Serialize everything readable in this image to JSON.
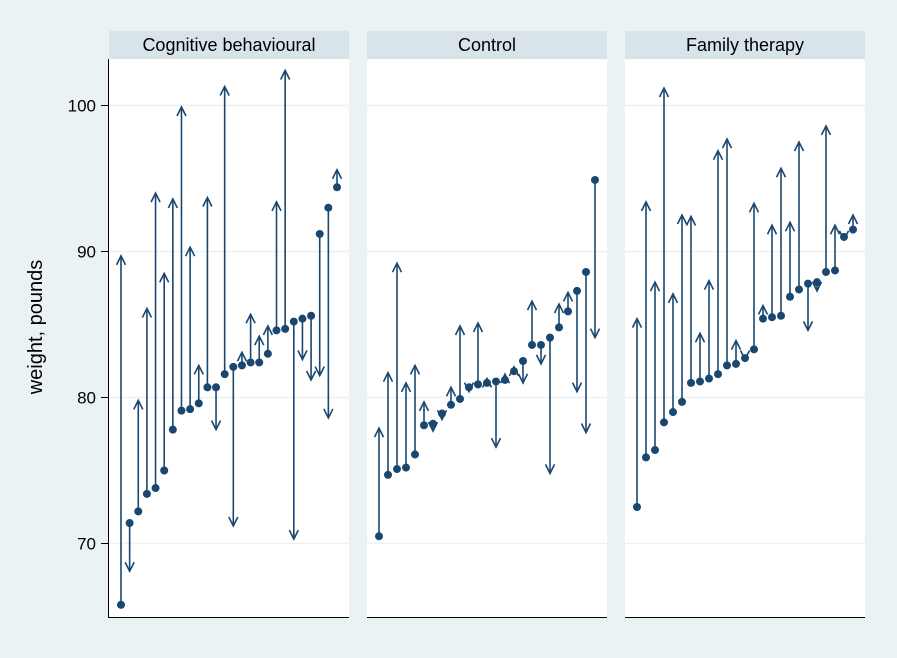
{
  "chart_data": {
    "type": "dropline",
    "ylabel": "weight, pounds",
    "xlabel": "",
    "ylim": [
      65,
      103
    ],
    "yticks": [
      "70",
      "80",
      "90",
      "100"
    ],
    "grid": true,
    "colors": {
      "background": "#eaf2f3",
      "panel": "#ffffff",
      "strip": "#d8e3ea",
      "marker": "#1a476f",
      "grid": "#eaf2f3"
    },
    "panels": [
      {
        "name": "Cognitive behavioural",
        "start": [
          65.8,
          71.4,
          72.2,
          73.4,
          73.8,
          75.0,
          77.8,
          79.1,
          79.2,
          79.6,
          80.7,
          80.7,
          81.6,
          82.1,
          82.2,
          82.4,
          82.4,
          83.0,
          84.6,
          84.7,
          85.2,
          85.4,
          85.6,
          91.2,
          93.0,
          94.4
        ],
        "end": [
          89.7,
          68.1,
          79.8,
          86.1,
          94.0,
          88.5,
          93.6,
          99.9,
          90.3,
          82.2,
          93.7,
          77.8,
          101.3,
          71.2,
          83.1,
          85.7,
          84.2,
          84.9,
          93.4,
          102.4,
          70.3,
          82.6,
          81.2,
          81.5,
          78.6,
          95.6
        ]
      },
      {
        "name": "Control",
        "start": [
          70.5,
          74.7,
          75.1,
          75.2,
          76.1,
          78.1,
          78.2,
          78.9,
          79.5,
          79.9,
          80.7,
          80.9,
          81.0,
          81.1,
          81.2,
          81.8,
          82.5,
          83.6,
          83.6,
          84.1,
          84.8,
          85.9,
          87.3,
          88.6,
          94.9
        ],
        "end": [
          77.9,
          81.7,
          89.2,
          81.0,
          82.2,
          79.7,
          77.7,
          78.5,
          80.7,
          84.9,
          80.4,
          85.1,
          81.3,
          76.6,
          81.6,
          82.1,
          81.0,
          86.6,
          82.3,
          74.8,
          86.4,
          87.2,
          80.4,
          77.6,
          84.1
        ]
      },
      {
        "name": "Family therapy",
        "start": [
          72.5,
          75.9,
          76.4,
          78.3,
          79.0,
          79.7,
          81.0,
          81.1,
          81.3,
          81.6,
          82.2,
          82.3,
          82.7,
          83.3,
          85.4,
          85.5,
          85.6,
          86.9,
          87.4,
          87.8,
          87.9,
          88.6,
          88.7,
          91.0,
          91.5
        ],
        "end": [
          85.4,
          93.4,
          87.9,
          101.2,
          87.1,
          92.5,
          92.4,
          84.4,
          88.0,
          96.9,
          97.7,
          83.9,
          82.6,
          93.3,
          86.3,
          91.8,
          95.7,
          92.0,
          97.5,
          84.6,
          87.3,
          98.6,
          91.8,
          90.8,
          92.5
        ]
      }
    ]
  }
}
